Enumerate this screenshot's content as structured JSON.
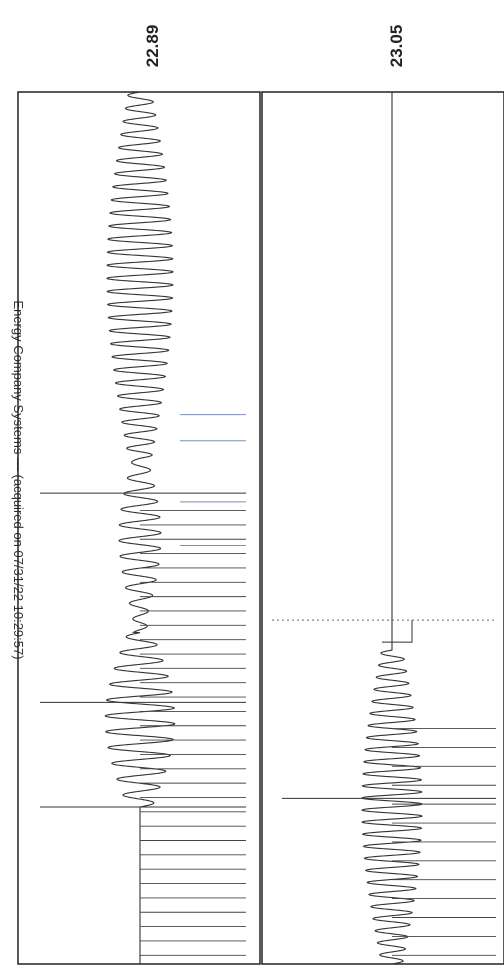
{
  "header": {
    "text": "Energy Company Systems — (acquired on 07/31/22 10:29:57)"
  },
  "chart_data": {
    "type": "line",
    "title": "",
    "xlabel": "",
    "ylabel": "",
    "panels": [
      {
        "name": "panel-1",
        "reading": "22.89",
        "packets": [
          {
            "start": 0.18,
            "end": 0.38,
            "amp": 0.58,
            "cycles": 11
          },
          {
            "start": 0.4,
            "end": 0.58,
            "amp": 0.35,
            "cycles": 10
          },
          {
            "start": 0.58,
            "end": 1.0,
            "amp": 0.55,
            "cycles": 28
          }
        ],
        "noise": [
          {
            "start": 0.0,
            "end": 0.18,
            "amp": 0.0
          },
          {
            "start": 0.36,
            "end": 0.42,
            "amp": 0.12
          },
          {
            "start": 0.56,
            "end": 0.6,
            "amp": 0.1
          }
        ],
        "markers_start": 0.48,
        "markers_end": 0.99,
        "marker_count": 32,
        "long_markers": [
          0.46,
          0.7,
          0.82
        ],
        "highlight_markers": [
          0.37,
          0.4,
          0.47,
          0.52
        ]
      },
      {
        "name": "panel-2",
        "reading": "23.05",
        "packets": [
          {
            "start": 0.0,
            "end": 0.36,
            "amp": 0.5,
            "cycles": 26
          }
        ],
        "noise": [],
        "markers_start": 0.01,
        "markers_end": 0.27,
        "marker_count": 13,
        "long_markers": [
          0.19
        ],
        "highlight_markers": [],
        "dotted_threshold": 0.36
      }
    ]
  }
}
